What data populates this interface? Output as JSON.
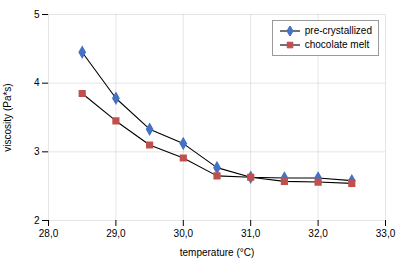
{
  "chart_data": {
    "type": "line",
    "x": [
      28.5,
      29.0,
      29.5,
      30.0,
      30.5,
      31.0,
      31.5,
      32.0,
      32.5
    ],
    "series": [
      {
        "name": "pre-crystallized",
        "color": "#4472C4",
        "marker": "diamond",
        "values": [
          4.45,
          3.78,
          3.33,
          3.12,
          2.77,
          2.63,
          2.62,
          2.62,
          2.58
        ]
      },
      {
        "name": "chocolate melt",
        "color": "#C0504D",
        "marker": "square",
        "values": [
          3.85,
          3.45,
          3.1,
          2.91,
          2.65,
          2.63,
          2.57,
          2.56,
          2.54
        ]
      }
    ],
    "xlabel": "temperature (°C)",
    "ylabel": "viscosity (Pa*s)",
    "xlim": [
      28.0,
      33.0
    ],
    "ylim": [
      2.0,
      5.0
    ],
    "xticks": [
      {
        "value": 28.0,
        "label": "28,0"
      },
      {
        "value": 29.0,
        "label": "29,0"
      },
      {
        "value": 30.0,
        "label": "30,0"
      },
      {
        "value": 31.0,
        "label": "31,0"
      },
      {
        "value": 32.0,
        "label": "32,0"
      },
      {
        "value": 33.0,
        "label": "33,0"
      }
    ],
    "yticks": [
      2,
      3,
      4,
      5
    ],
    "grid": true,
    "legend": "upper right"
  }
}
